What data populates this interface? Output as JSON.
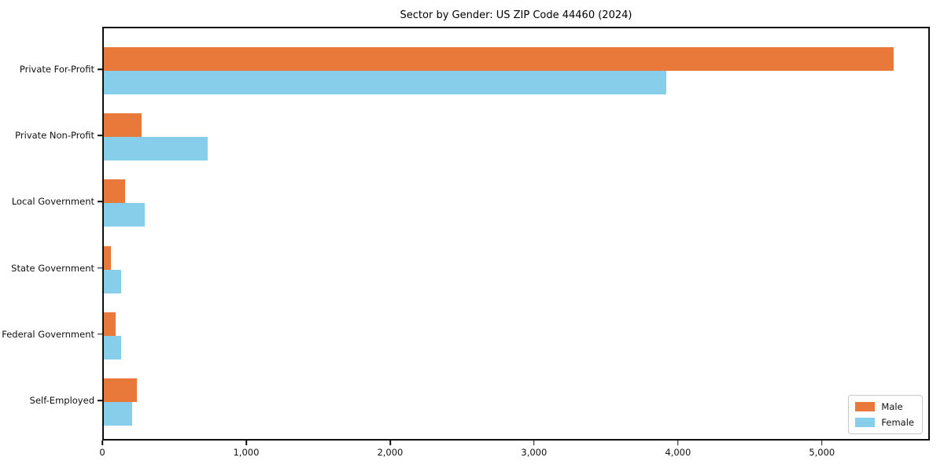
{
  "chart_data": {
    "type": "bar",
    "orientation": "horizontal",
    "title": "Sector by Gender: US ZIP Code 44460 (2024)",
    "categories": [
      "Private For-Profit",
      "Private Non-Profit",
      "Local Government",
      "State Government",
      "Federal Government",
      "Self-Employed"
    ],
    "series": [
      {
        "name": "Male",
        "color": "#E8793B",
        "values": [
          5490,
          260,
          150,
          50,
          80,
          230
        ]
      },
      {
        "name": "Female",
        "color": "#87CEEB",
        "values": [
          3910,
          720,
          285,
          120,
          120,
          195
        ]
      }
    ],
    "xlabel": "",
    "ylabel": "",
    "xlim": [
      0,
      5750
    ],
    "xticks": [
      0,
      1000,
      2000,
      3000,
      4000,
      5000
    ],
    "xtick_labels": [
      "0",
      "1,000",
      "2,000",
      "3,000",
      "4,000",
      "5,000"
    ],
    "legend_position": "lower right",
    "grid": false,
    "background_color": "#ffffff",
    "spine_color": "#101010"
  }
}
